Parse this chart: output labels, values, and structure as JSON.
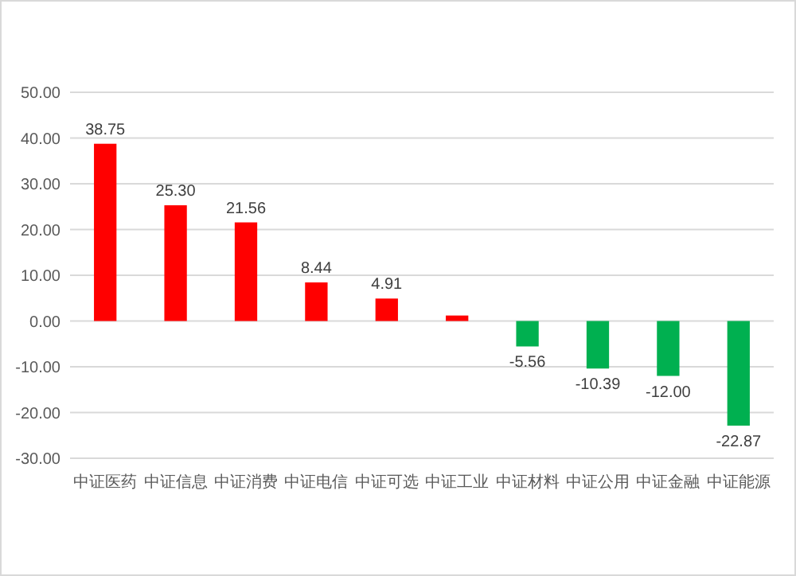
{
  "chart_data": {
    "type": "bar",
    "categories": [
      "中证医药",
      "中证信息",
      "中证消费",
      "中证电信",
      "中证可选",
      "中证工业",
      "中证材料",
      "中证公用",
      "中证金融",
      "中证能源"
    ],
    "values": [
      38.75,
      25.3,
      21.56,
      8.44,
      4.91,
      1.2,
      -5.56,
      -10.39,
      -12.0,
      -22.87
    ],
    "colors": [
      "#ff0000",
      "#ff0000",
      "#ff0000",
      "#ff0000",
      "#ff0000",
      "#ff0000",
      "#00b050",
      "#00b050",
      "#00b050",
      "#00b050"
    ],
    "value_labels": [
      "38.75",
      "25.30",
      "21.56",
      "8.44",
      "4.91",
      null,
      "-5.56",
      "-10.39",
      "-12.00",
      "-22.87"
    ],
    "ylim": [
      -30,
      50
    ],
    "yticks": [
      {
        "value": -30,
        "label": "-30.00"
      },
      {
        "value": -20,
        "label": "-20.00"
      },
      {
        "value": -10,
        "label": "-10.00"
      },
      {
        "value": 0,
        "label": "0.00"
      },
      {
        "value": 10,
        "label": "10.00"
      },
      {
        "value": 20,
        "label": "20.00"
      },
      {
        "value": 30,
        "label": "30.00"
      },
      {
        "value": 40,
        "label": "40.00"
      },
      {
        "value": 50,
        "label": "50.00"
      }
    ],
    "grid": "y"
  }
}
